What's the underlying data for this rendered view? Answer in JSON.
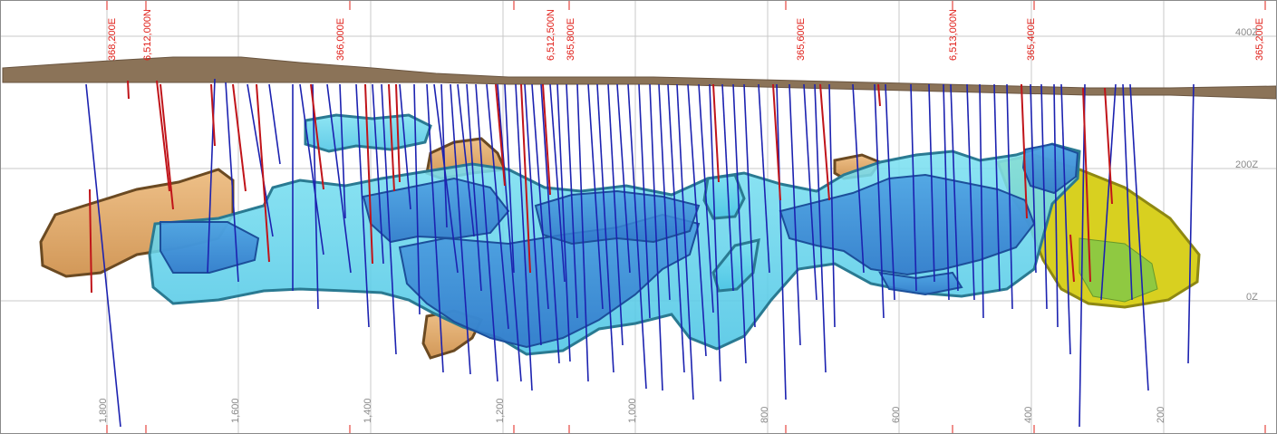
{
  "section_view": {
    "grid_labels_top": [
      "368,200E",
      "6,512,000N",
      "366,000E",
      "6,512,500N",
      "365,800E",
      "365,600E",
      "6,513,000N",
      "365,400E",
      "365,200E"
    ],
    "elevation_labels": [
      "400Z",
      "200Z",
      "0Z"
    ],
    "distance_labels": [
      "1,800",
      "1,600",
      "1,400",
      "1,200",
      "1,000",
      "800",
      "600",
      "400",
      "200"
    ],
    "colors": {
      "topography": "#8b7358",
      "drillhole_blue": "#1c22b0",
      "drillhole_red": "#c0141a",
      "orebody_cyan": "#6ed8ec",
      "orebody_blue": "#3c8ed8",
      "orebody_tan": "#e2aa68",
      "orebody_yellow": "#d8d020",
      "gridline": "#c8c8c8",
      "label_red": "#e0201a"
    }
  }
}
